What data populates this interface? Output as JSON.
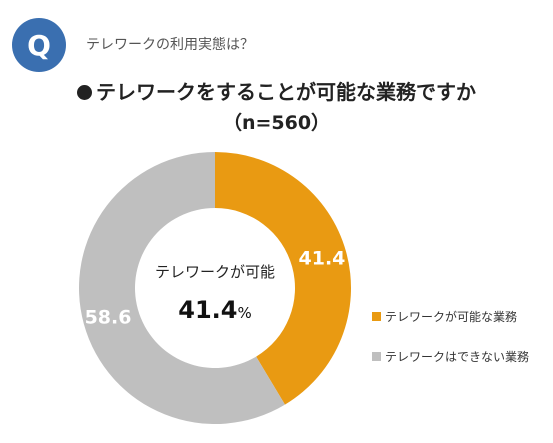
{
  "header": {
    "badge": "Q",
    "question": "テレワークの利用実態は？",
    "title": "テレワークをすることが可能な業務ですか",
    "sample": "（n=560）"
  },
  "center": {
    "label": "テレワークが可能",
    "value": "41.4",
    "unit": "%"
  },
  "colors": {
    "accent": "#e99a12",
    "secondary": "#bfbfbf",
    "badge": "#3a6fb0"
  },
  "chart_data": {
    "type": "pie",
    "subtype": "donut",
    "title": "テレワークをすることが可能な業務ですか",
    "subtitle": "（n=560）",
    "categories": [
      "テレワークが可能な業務",
      "テレワークはできない業務"
    ],
    "values": [
      41.4,
      58.6
    ],
    "colors": [
      "#e99a12",
      "#bfbfbf"
    ],
    "data_labels": [
      "41.4",
      "58.6"
    ],
    "legend_placement": "right",
    "start_angle": "12 o'clock",
    "direction": "clockwise"
  }
}
